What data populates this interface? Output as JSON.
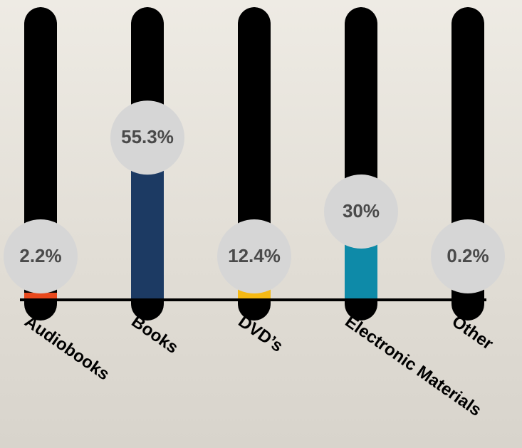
{
  "chart_data": {
    "type": "bar",
    "categories": [
      "Audiobooks",
      "Books",
      "DVD’s",
      "Electronic Materials",
      "Other"
    ],
    "series": [
      {
        "values": [
          2.2,
          55.3,
          12.4,
          30,
          0.2
        ],
        "value_labels": [
          "2.2%",
          "55.3%",
          "12.4%",
          "30%",
          "0.2%"
        ],
        "colors": [
          "#e8491d",
          "#1c3a63",
          "#f5b914",
          "#0e8aa8",
          "#e0198f"
        ]
      }
    ],
    "ylim": [
      0,
      100
    ]
  }
}
